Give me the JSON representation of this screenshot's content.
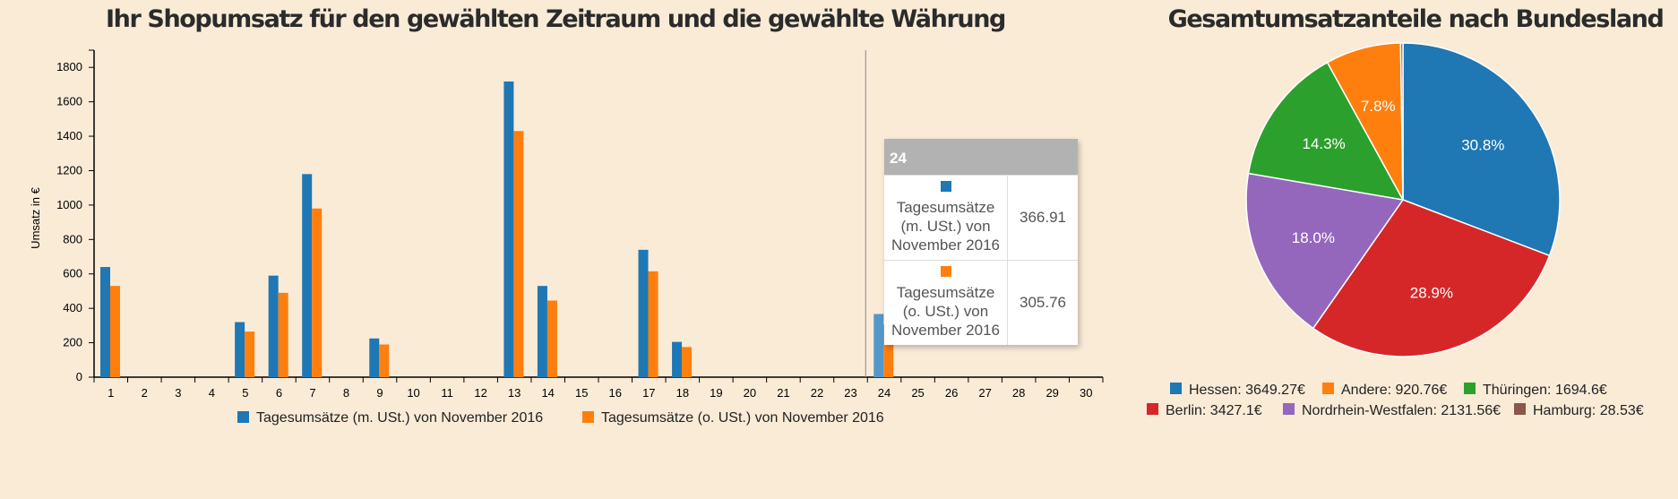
{
  "chart_data": [
    {
      "type": "bar",
      "title": "Ihr Shopumsatz für den gewählten Zeitraum und die gewählte Währung",
      "ylabel": "Umsatz in €",
      "xlabel": "",
      "ylim": [
        0,
        1900
      ],
      "yticks": [
        0,
        200,
        400,
        600,
        800,
        1000,
        1200,
        1400,
        1600,
        1800
      ],
      "categories": [
        "1",
        "2",
        "3",
        "4",
        "5",
        "6",
        "7",
        "8",
        "9",
        "10",
        "11",
        "12",
        "13",
        "14",
        "15",
        "16",
        "17",
        "18",
        "19",
        "20",
        "21",
        "22",
        "23",
        "24",
        "25",
        "26",
        "27",
        "28",
        "29",
        "30"
      ],
      "series": [
        {
          "name": "Tagesumsätze (m. USt.) von November 2016",
          "color": "#1f77b4",
          "values": [
            640,
            0,
            0,
            0,
            320,
            590,
            1180,
            0,
            225,
            0,
            0,
            0,
            1718,
            530,
            0,
            0,
            740,
            205,
            0,
            0,
            0,
            0,
            0,
            366.91,
            0,
            0,
            0,
            0,
            0,
            0
          ]
        },
        {
          "name": "Tagesumsätze (o. USt.) von November 2016",
          "color": "#ff7f0e",
          "values": [
            530,
            0,
            0,
            0,
            265,
            490,
            980,
            0,
            190,
            0,
            0,
            0,
            1430,
            445,
            0,
            0,
            615,
            175,
            0,
            0,
            0,
            0,
            0,
            305.76,
            0,
            0,
            0,
            0,
            0,
            0
          ]
        }
      ],
      "legend_position": "bottom",
      "tooltip": {
        "category": "24",
        "rows": [
          {
            "name": "Tagesumsätze (m. USt.) von November 2016",
            "value": "366.91",
            "color": "#1f77b4"
          },
          {
            "name": "Tagesumsätze (o. USt.) von November 2016",
            "value": "305.76",
            "color": "#ff7f0e"
          }
        ]
      }
    },
    {
      "type": "pie",
      "title": "Gesamtumsatzanteile nach Bundesland",
      "slices": [
        {
          "name": "Hessen",
          "value": 3649.27,
          "label": "30.8%",
          "legend": "Hessen: 3649.27€",
          "color": "#1f77b4"
        },
        {
          "name": "Berlin",
          "value": 3427.1,
          "label": "28.9%",
          "legend": "Berlin: 3427.1€",
          "color": "#d62728"
        },
        {
          "name": "Nordrhein-Westfalen",
          "value": 2131.56,
          "label": "18.0%",
          "legend": "Nordrhein-Westfalen: 2131.56€",
          "color": "#9467bd"
        },
        {
          "name": "Thüringen",
          "value": 1694.6,
          "label": "14.3%",
          "legend": "Thüringen: 1694.6€",
          "color": "#2ca02c"
        },
        {
          "name": "Andere",
          "value": 920.76,
          "label": "7.8%",
          "legend": "Andere: 920.76€",
          "color": "#ff7f0e"
        },
        {
          "name": "Hamburg",
          "value": 28.53,
          "label": "",
          "legend": "Hamburg: 28.53€",
          "color": "#8c564b"
        }
      ],
      "legend_rows": [
        [
          "Hessen",
          "Andere",
          "Thüringen"
        ],
        [
          "Berlin",
          "Nordrhein-Westfalen",
          "Hamburg"
        ]
      ],
      "legend_position": "bottom"
    }
  ]
}
